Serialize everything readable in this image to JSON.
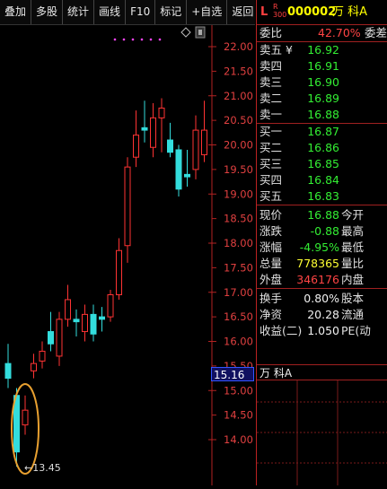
{
  "toolbar": {
    "buttons": [
      "叠加",
      "多股",
      "统计",
      "画线",
      "F10",
      "标记",
      "+自选",
      "返回"
    ]
  },
  "chart": {
    "price_axis_labels": [
      "22.00",
      "21.50",
      "21.00",
      "20.50",
      "20.00",
      "19.50",
      "19.00",
      "18.50",
      "18.00",
      "17.50",
      "17.00",
      "16.50",
      "16.00",
      "15.50",
      "15.00",
      "14.50",
      "14.00"
    ],
    "current_price_tag": "15.16",
    "low_marker": "←13.45",
    "colors": {
      "up": "#ff3333",
      "down": "#33dddd",
      "axis": "#b22222",
      "grid": "#7a1a1a",
      "highlight": "#e8a030"
    }
  },
  "chart_data": {
    "type": "candlestick",
    "y_axis_ticks": [
      22.0,
      21.5,
      21.0,
      20.5,
      20.0,
      19.5,
      19.0,
      18.5,
      18.0,
      17.5,
      17.0,
      16.5,
      16.0,
      15.5,
      15.0,
      14.5,
      14.0
    ],
    "ylim": [
      13.45,
      22.2
    ],
    "low_annotation": 13.45,
    "candles": [
      {
        "open": 15.55,
        "close": 15.25,
        "high": 15.95,
        "low": 15.05
      },
      {
        "open": 14.9,
        "close": 13.75,
        "high": 15.05,
        "low": 13.45
      },
      {
        "open": 14.3,
        "close": 14.6,
        "high": 14.9,
        "low": 14.1
      },
      {
        "open": 15.4,
        "close": 15.55,
        "high": 15.75,
        "low": 15.25
      },
      {
        "open": 15.6,
        "close": 15.8,
        "high": 16.0,
        "low": 15.45
      },
      {
        "open": 16.2,
        "close": 15.95,
        "high": 16.6,
        "low": 15.8
      },
      {
        "open": 15.7,
        "close": 16.45,
        "high": 16.6,
        "low": 15.5
      },
      {
        "open": 16.45,
        "close": 16.85,
        "high": 17.15,
        "low": 16.3
      },
      {
        "open": 16.45,
        "close": 16.4,
        "high": 16.65,
        "low": 16.1
      },
      {
        "open": 16.2,
        "close": 16.55,
        "high": 16.75,
        "low": 16.0
      },
      {
        "open": 16.55,
        "close": 16.15,
        "high": 16.75,
        "low": 16.0
      },
      {
        "open": 16.5,
        "close": 16.45,
        "high": 16.7,
        "low": 16.2
      },
      {
        "open": 16.5,
        "close": 16.95,
        "high": 17.05,
        "low": 16.4
      },
      {
        "open": 16.95,
        "close": 17.85,
        "high": 18.1,
        "low": 16.85
      },
      {
        "open": 17.95,
        "close": 19.55,
        "high": 19.75,
        "low": 17.6
      },
      {
        "open": 19.75,
        "close": 20.2,
        "high": 20.7,
        "low": 19.55
      },
      {
        "open": 20.35,
        "close": 20.3,
        "high": 20.9,
        "low": 20.05
      },
      {
        "open": 19.95,
        "close": 20.55,
        "high": 20.85,
        "low": 19.75
      },
      {
        "open": 20.55,
        "close": 20.75,
        "high": 20.95,
        "low": 19.85
      },
      {
        "open": 20.1,
        "close": 19.85,
        "high": 20.45,
        "low": 19.75
      },
      {
        "open": 19.9,
        "close": 19.1,
        "high": 20.0,
        "low": 18.95
      },
      {
        "open": 19.4,
        "close": 19.35,
        "high": 19.9,
        "low": 19.15
      },
      {
        "open": 19.5,
        "close": 20.3,
        "high": 20.6,
        "low": 19.3
      },
      {
        "open": 19.8,
        "close": 20.3,
        "high": 20.9,
        "low": 19.65
      }
    ]
  },
  "quote": {
    "L": "L",
    "R": "R",
    "code_suffix": "300",
    "code": "000002",
    "name": "万 科A",
    "webi": {
      "label": "委比",
      "value": "42.70%",
      "label2": "委差"
    },
    "sell": [
      {
        "label": "卖五 ¥",
        "price": "16.92"
      },
      {
        "label": "卖四",
        "price": "16.91"
      },
      {
        "label": "卖三",
        "price": "16.90"
      },
      {
        "label": "卖二",
        "price": "16.89"
      },
      {
        "label": "卖一",
        "price": "16.88"
      }
    ],
    "buy": [
      {
        "label": "买一",
        "price": "16.87"
      },
      {
        "label": "买二",
        "price": "16.86"
      },
      {
        "label": "买三",
        "price": "16.85"
      },
      {
        "label": "买四",
        "price": "16.84"
      },
      {
        "label": "买五",
        "price": "16.83"
      }
    ],
    "stats": [
      {
        "label": "现价",
        "value": "16.88",
        "label2": "今开"
      },
      {
        "label": "涨跌",
        "value": "-0.88",
        "label2": "最高"
      },
      {
        "label": "涨幅",
        "value": "-4.95%",
        "label2": "最低"
      },
      {
        "label": "总量",
        "value": "778365",
        "label2": "量比"
      },
      {
        "label": "外盘",
        "value": "346176",
        "label2": "内盘"
      }
    ],
    "extra": [
      {
        "label": "换手",
        "value": "0.80%",
        "label2": "股本"
      },
      {
        "label": "净资",
        "value": "20.28",
        "label2": "流通"
      },
      {
        "label": "收益(二)",
        "value": "1.050",
        "label2": "PE(动"
      }
    ],
    "mini_title": "万 科A"
  }
}
